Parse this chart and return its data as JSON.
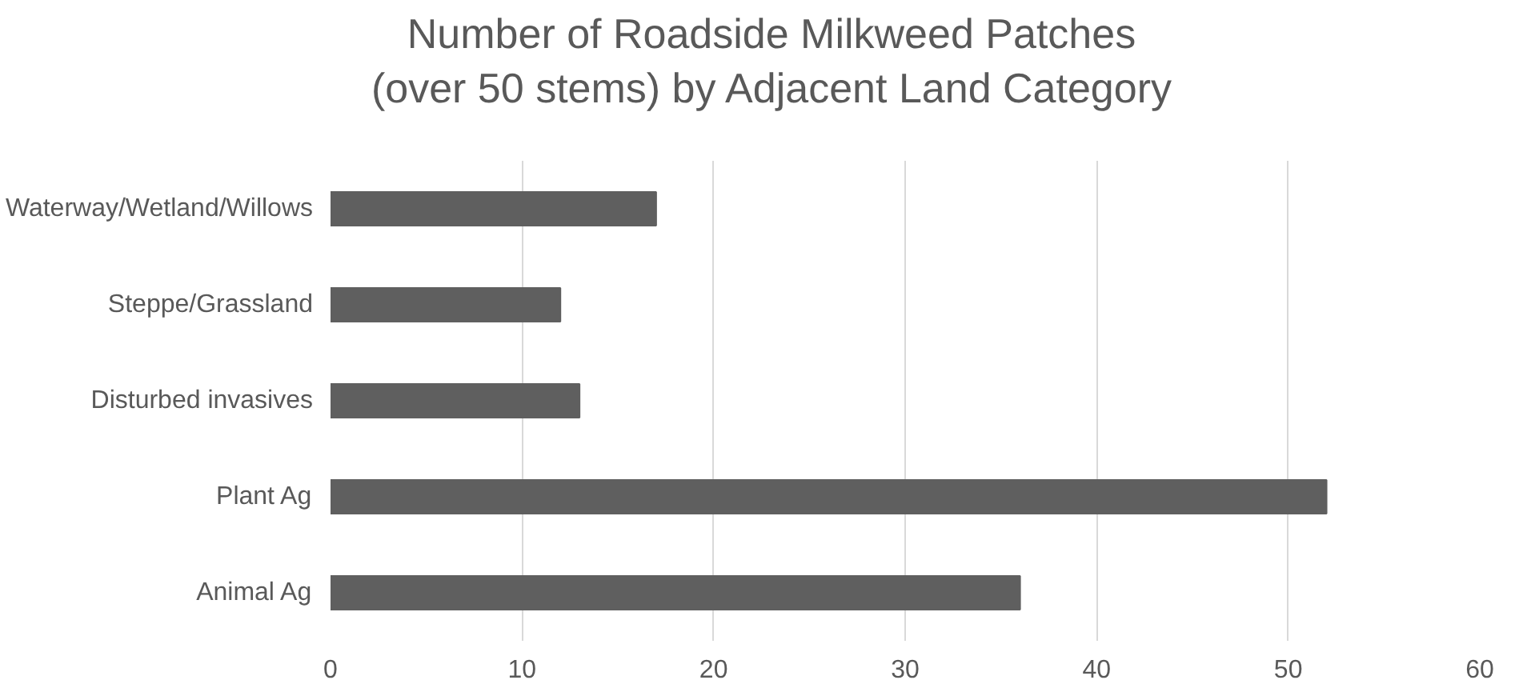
{
  "chart_data": {
    "type": "bar",
    "orientation": "horizontal",
    "title": "Number of Roadside Milkweed Patches\n(over 50 stems) by Adjacent Land Category",
    "categories": [
      "Waterway/Wetland/Willows",
      "Steppe/Grassland",
      "Disturbed invasives",
      "Plant Ag",
      "Animal Ag"
    ],
    "values": [
      17,
      12,
      13,
      52,
      36
    ],
    "color": "#5f5f5f",
    "xlim": [
      0,
      60
    ],
    "xticks": [
      0,
      10,
      20,
      30,
      40,
      50,
      60
    ],
    "grid": "x"
  }
}
